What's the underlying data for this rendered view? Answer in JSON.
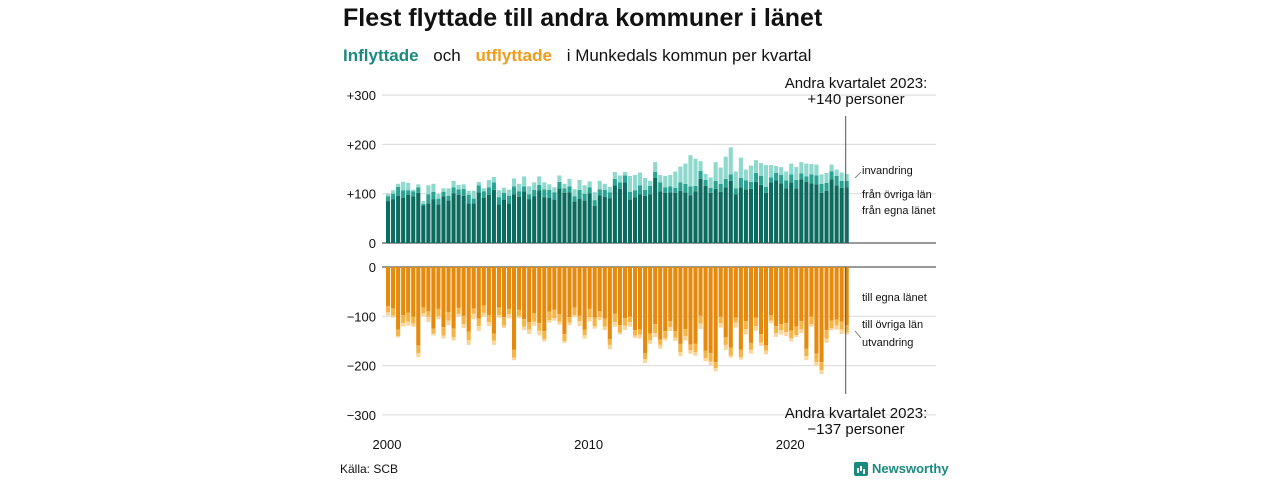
{
  "title": "Flest flyttade till andra kommuner i länet",
  "subtitle": {
    "in_word": "Inflyttade",
    "och": "och",
    "out_word": "utflyttade",
    "rest": "i Munkedals  kommun  per  kvartal"
  },
  "source": "Källa: SCB",
  "brand": "Newsworthy",
  "colors": {
    "in_county": "#0b6b5f",
    "in_other": "#2aa393",
    "in_abroad": "#8ed8cd",
    "out_county": "#e58a0c",
    "out_other": "#f5b445",
    "out_abroad": "#fbd69a"
  },
  "chart_data": [
    {
      "type": "bar",
      "stacked": true,
      "panel": "inflyttade",
      "x_start": "2000 Q1",
      "x_end": "2023 Q2",
      "frequency": "quarterly",
      "x_ticks": [
        "2000",
        "2010",
        "2020"
      ],
      "y_ticks": [
        "0",
        "+100",
        "+200",
        "+300"
      ],
      "ylim": [
        0,
        300
      ],
      "series": [
        {
          "name": "från egna länet",
          "values": [
            85,
            89,
            96,
            92,
            98,
            95,
            102,
            76,
            80,
            89,
            78,
            95,
            86,
            101,
            98,
            96,
            80,
            80,
            103,
            92,
            98,
            108,
            78,
            88,
            80,
            99,
            94,
            105,
            89,
            95,
            107,
            93,
            92,
            88,
            111,
            102,
            103,
            84,
            90,
            86,
            101,
            75,
            97,
            94,
            91,
            117,
            110,
            123,
            88,
            93,
            99,
            96,
            99,
            132,
            105,
            102,
            103,
            102,
            106,
            103,
            97,
            105,
            130,
            116,
            102,
            110,
            104,
            113,
            126,
            99,
            113,
            109,
            110,
            124,
            118,
            102,
            123,
            127,
            121,
            111,
            123,
            111,
            129,
            124,
            121,
            119,
            102,
            106,
            129,
            117,
            112,
            113
          ]
        },
        {
          "name": "från övriga län",
          "values": [
            10,
            11,
            18,
            15,
            9,
            10,
            11,
            3,
            19,
            15,
            12,
            9,
            10,
            12,
            11,
            14,
            18,
            10,
            14,
            13,
            15,
            15,
            15,
            14,
            16,
            16,
            11,
            10,
            10,
            13,
            11,
            16,
            16,
            15,
            13,
            9,
            12,
            11,
            18,
            14,
            12,
            12,
            12,
            14,
            12,
            13,
            13,
            14,
            16,
            14,
            18,
            12,
            17,
            12,
            18,
            11,
            12,
            10,
            17,
            17,
            18,
            11,
            16,
            12,
            10,
            16,
            16,
            17,
            13,
            12,
            19,
            18,
            14,
            18,
            18,
            12,
            10,
            15,
            17,
            16,
            16,
            17,
            12,
            11,
            18,
            18,
            18,
            16,
            16,
            19,
            14,
            13
          ]
        },
        {
          "name": "invandring",
          "values": [
            5,
            7,
            6,
            17,
            15,
            3,
            6,
            6,
            18,
            16,
            9,
            7,
            15,
            13,
            9,
            9,
            8,
            16,
            7,
            6,
            15,
            11,
            14,
            10,
            12,
            16,
            15,
            20,
            16,
            15,
            17,
            14,
            11,
            10,
            13,
            9,
            15,
            14,
            20,
            17,
            12,
            16,
            17,
            12,
            11,
            14,
            14,
            7,
            32,
            31,
            26,
            24,
            10,
            20,
            15,
            23,
            23,
            33,
            32,
            41,
            63,
            55,
            20,
            12,
            21,
            38,
            33,
            45,
            55,
            34,
            41,
            22,
            33,
            26,
            26,
            44,
            25,
            14,
            16,
            18,
            22,
            26,
            23,
            26,
            21,
            22,
            19,
            20,
            14,
            13,
            17,
            14
          ]
        }
      ],
      "annotation": [
        "Andra kvartalet 2023:",
        "+140 personer"
      ]
    },
    {
      "type": "bar",
      "stacked": true,
      "panel": "utflyttade",
      "x_start": "2000 Q1",
      "x_end": "2023 Q2",
      "frequency": "quarterly",
      "x_ticks": [
        "2000",
        "2010",
        "2020"
      ],
      "y_ticks": [
        "0",
        "−100",
        "−200",
        "−300"
      ],
      "ylim": [
        -300,
        0
      ],
      "series": [
        {
          "name": "till egna länet",
          "values": [
            -79,
            -84,
            -127,
            -98,
            -93,
            -101,
            -159,
            -82,
            -90,
            -125,
            -85,
            -122,
            -92,
            -125,
            -83,
            -99,
            -131,
            -84,
            -105,
            -78,
            -98,
            -135,
            -82,
            -102,
            -85,
            -168,
            -87,
            -106,
            -112,
            -94,
            -114,
            -130,
            -91,
            -87,
            -96,
            -136,
            -102,
            -82,
            -99,
            -127,
            -85,
            -103,
            -90,
            -105,
            -146,
            -95,
            -118,
            -104,
            -101,
            -128,
            -127,
            -175,
            -135,
            -116,
            -147,
            -130,
            -110,
            -130,
            -156,
            -126,
            -157,
            -156,
            -99,
            -170,
            -175,
            -193,
            -101,
            -142,
            -164,
            -103,
            -168,
            -110,
            -154,
            -103,
            -136,
            -159,
            -98,
            -120,
            -116,
            -114,
            -129,
            -121,
            -110,
            -166,
            -101,
            -176,
            -193,
            -128,
            -109,
            -107,
            -111,
            -118
          ]
        },
        {
          "name": "till övriga län",
          "values": [
            -13,
            -15,
            -13,
            -16,
            -18,
            -14,
            -16,
            -12,
            -11,
            -10,
            -15,
            -17,
            -17,
            -17,
            -12,
            -17,
            -17,
            -11,
            -15,
            -15,
            -14,
            -14,
            -16,
            -17,
            -11,
            -16,
            -13,
            -15,
            -15,
            -17,
            -15,
            -16,
            -17,
            -17,
            -15,
            -14,
            -11,
            -16,
            -11,
            -11,
            -17,
            -17,
            -12,
            -16,
            -12,
            -17,
            -15,
            -15,
            -11,
            -11,
            -10,
            -12,
            -13,
            -18,
            -11,
            -14,
            -12,
            -13,
            -17,
            -14,
            -12,
            -17,
            -16,
            -15,
            -17,
            -12,
            -13,
            -16,
            -16,
            -10,
            -15,
            -16,
            -14,
            -17,
            -17,
            -11,
            -11,
            -14,
            -12,
            -18,
            -15,
            -17,
            -16,
            -15,
            -15,
            -17,
            -16,
            -17,
            -15,
            -12,
            -16,
            -15
          ]
        },
        {
          "name": "utvandring",
          "values": [
            -6,
            -4,
            -3,
            -7,
            -8,
            -6,
            -8,
            -6,
            -11,
            -4,
            -6,
            -6,
            -9,
            -7,
            -5,
            -8,
            -10,
            -11,
            -10,
            -8,
            -8,
            -9,
            -5,
            -5,
            -8,
            -5,
            -4,
            -7,
            -9,
            -8,
            -10,
            -5,
            -5,
            -5,
            -6,
            -4,
            -5,
            -4,
            -10,
            -7,
            -8,
            -5,
            -6,
            -7,
            -9,
            -9,
            -4,
            -9,
            -9,
            -5,
            -8,
            -8,
            -8,
            -8,
            -8,
            -5,
            -8,
            -7,
            -8,
            -9,
            -7,
            -7,
            -11,
            -6,
            -7,
            -7,
            -9,
            -10,
            -4,
            -10,
            -5,
            -11,
            -8,
            -9,
            -7,
            -7,
            -5,
            -8,
            -9,
            -8,
            -7,
            -4,
            -8,
            -8,
            -5,
            -8,
            -8,
            -9,
            -4,
            -8,
            -9,
            -4
          ]
        }
      ],
      "annotation": [
        "Andra kvartalet 2023:",
        "−137 personer"
      ]
    }
  ]
}
